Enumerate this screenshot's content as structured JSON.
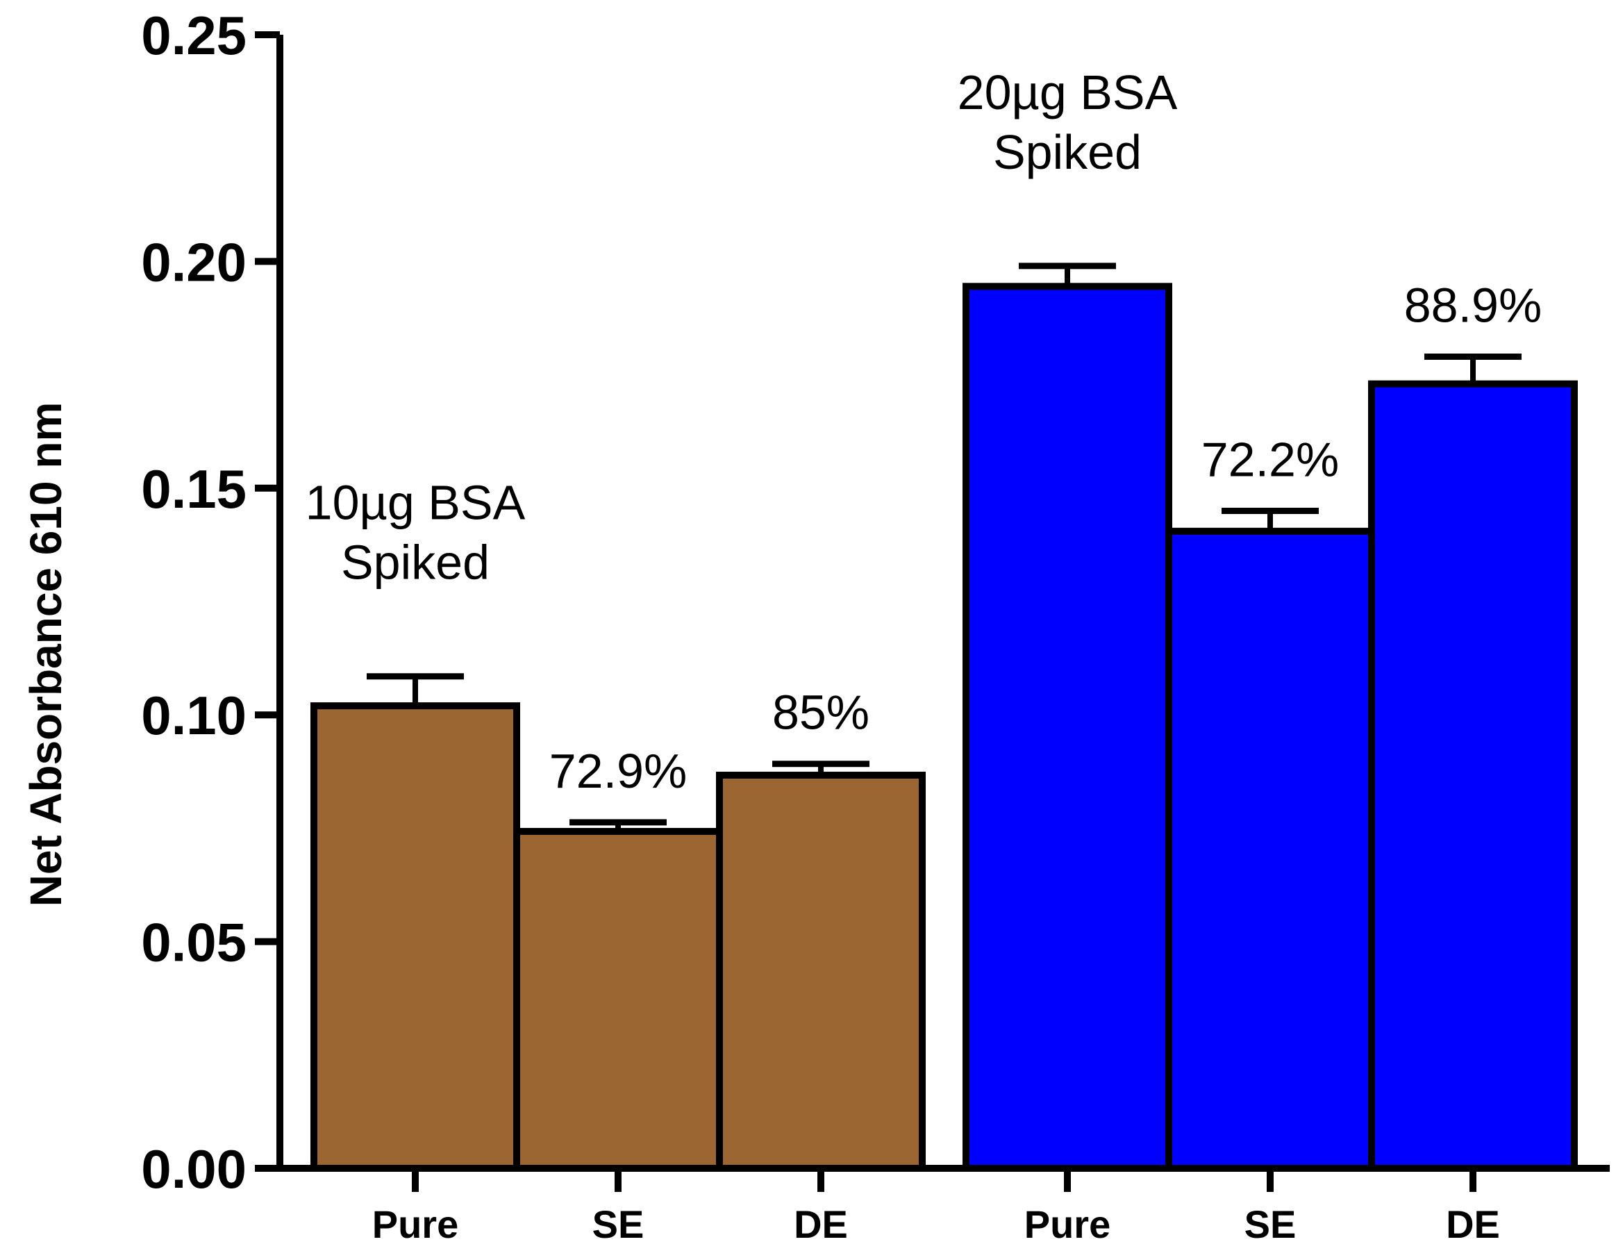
{
  "chart_data": {
    "type": "bar",
    "title": "",
    "xlabel": "",
    "ylabel": "Net Absorbance 610 nm",
    "ylim": [
      0,
      0.25
    ],
    "yticks": [
      "0.00",
      "0.05",
      "0.10",
      "0.15",
      "0.20",
      "0.25"
    ],
    "grid": false,
    "legend": "none",
    "groups": [
      {
        "name": "10µg BSA Spiked",
        "label_lines": [
          "10µg BSA",
          "Spiked"
        ],
        "color": "#9c6633",
        "bars": [
          {
            "category": "Pure",
            "value": 0.102,
            "error": 0.0065,
            "annotation": ""
          },
          {
            "category": "SE",
            "value": 0.0743,
            "error": 0.002,
            "annotation": "72.9%"
          },
          {
            "category": "DE",
            "value": 0.0867,
            "error": 0.0025,
            "annotation": "85%"
          }
        ]
      },
      {
        "name": "20µg BSA Spiked",
        "label_lines": [
          "20µg BSA",
          "Spiked"
        ],
        "color": "#0000ff",
        "bars": [
          {
            "category": "Pure",
            "value": 0.1945,
            "error": 0.0045,
            "annotation": ""
          },
          {
            "category": "SE",
            "value": 0.1405,
            "error": 0.0045,
            "annotation": "72.2%"
          },
          {
            "category": "DE",
            "value": 0.173,
            "error": 0.006,
            "annotation": "88.9%"
          }
        ]
      }
    ]
  }
}
